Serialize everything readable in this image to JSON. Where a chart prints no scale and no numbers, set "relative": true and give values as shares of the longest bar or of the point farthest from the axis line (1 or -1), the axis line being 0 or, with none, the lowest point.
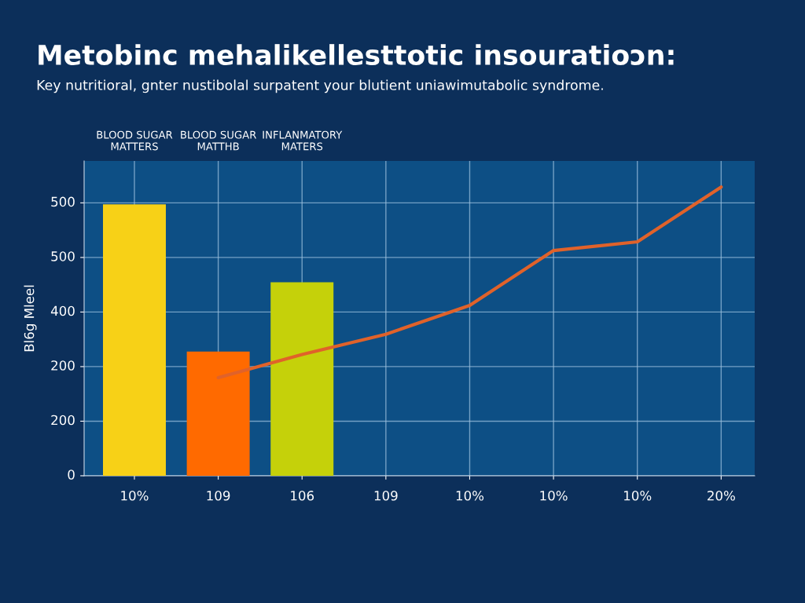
{
  "chart_data": {
    "type": "bar",
    "title": "Metobinc mehalikellesttotic insouratioɔn:",
    "subtitle": "Key nutritioral, gnter nustibolal surpatent your blutient uniawimutabolic syndrome.",
    "ylabel": "Bl6g Mleel",
    "annotations": [
      "BLOOD SUGAR\nMATTERS",
      "BLOOD SUGAR\nMATTHB",
      "INFLANMATORY\nMATERS",
      "0",
      "200",
      "200",
      "400",
      "500",
      "500"
    ],
    "relative": true,
    "categories": [
      "10%",
      "109",
      "106",
      "109",
      "10%",
      "10%",
      "10%",
      "20%"
    ],
    "grid": true,
    "series": [
      {
        "values": [
          0.94,
          0.43,
          0.67,
          null,
          null,
          null,
          null,
          null
        ],
        "colors": [
          "#f7d117",
          "#ff6a00",
          "#c5d10a",
          "#f7d117",
          "#f7d117",
          "#f7d117",
          "#f7d117",
          "#f7d117"
        ]
      },
      {
        "type": "line",
        "color": "#e0622a",
        "line_style": "solid",
        "values": [
          null,
          0.34,
          0.42,
          0.49,
          0.59,
          0.78,
          0.81,
          1.0
        ]
      }
    ]
  }
}
